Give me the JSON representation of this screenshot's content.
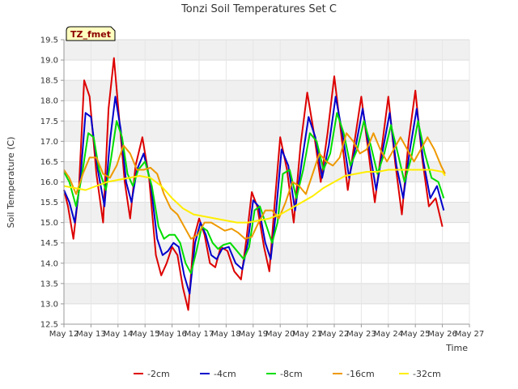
{
  "chart_data": {
    "type": "line",
    "title": "Tonzi Soil Temperatures Set C",
    "xlabel": "Time",
    "ylabel": "Soil Temperature (C)",
    "site_label": "TZ_fmet",
    "xlim": [
      12,
      27
    ],
    "ylim": [
      12.5,
      19.5
    ],
    "x_ticks": [
      12,
      13,
      14,
      15,
      16,
      17,
      18,
      19,
      20,
      21,
      22,
      23,
      24,
      25,
      26,
      27
    ],
    "x_tick_labels": [
      "May 12",
      "May 13",
      "May 14",
      "May 15",
      "May 16",
      "May 17",
      "May 18",
      "May 19",
      "May 20",
      "May 21",
      "May 22",
      "May 23",
      "May 24",
      "May 25",
      "May 26",
      "May 27"
    ],
    "y_ticks": [
      12.5,
      13.0,
      13.5,
      14.0,
      14.5,
      15.0,
      15.5,
      16.0,
      16.5,
      17.0,
      17.5,
      18.0,
      18.5,
      19.0,
      19.5
    ],
    "y_tick_labels": [
      "12.5",
      "13.0",
      "13.5",
      "14.0",
      "14.5",
      "15.0",
      "15.5",
      "16.0",
      "16.5",
      "17.0",
      "17.5",
      "18.0",
      "18.5",
      "19.0",
      "19.5"
    ],
    "grid": true,
    "legend_position": "bottom",
    "series": [
      {
        "name": "-2cm",
        "color": "#dd0000",
        "x": [
          12.0,
          12.15,
          12.35,
          12.55,
          12.75,
          12.95,
          13.2,
          13.45,
          13.65,
          13.85,
          14.05,
          14.25,
          14.45,
          14.65,
          14.9,
          15.15,
          15.4,
          15.6,
          15.8,
          16.0,
          16.2,
          16.4,
          16.6,
          16.8,
          17.0,
          17.2,
          17.4,
          17.6,
          17.8,
          18.05,
          18.3,
          18.55,
          18.75,
          18.95,
          19.15,
          19.4,
          19.6,
          19.8,
          20.0,
          20.25,
          20.5,
          20.75,
          21.0,
          21.25,
          21.5,
          21.75,
          22.0,
          22.25,
          22.5,
          22.75,
          23.0,
          23.25,
          23.5,
          23.75,
          24.0,
          24.25,
          24.5,
          24.75,
          25.0,
          25.25,
          25.5,
          25.75,
          26.0
        ],
        "y": [
          15.8,
          15.4,
          14.6,
          15.8,
          18.5,
          18.1,
          16.2,
          15.0,
          17.8,
          19.05,
          17.5,
          16.0,
          15.1,
          16.4,
          17.1,
          16.1,
          14.2,
          13.7,
          14.0,
          14.4,
          14.2,
          13.4,
          12.85,
          14.6,
          15.1,
          14.7,
          14.0,
          13.9,
          14.4,
          14.3,
          13.8,
          13.6,
          14.6,
          15.75,
          15.4,
          14.4,
          13.8,
          15.5,
          17.1,
          16.3,
          15.0,
          16.9,
          18.2,
          17.2,
          16.0,
          17.2,
          18.6,
          17.2,
          15.8,
          17.0,
          18.1,
          16.8,
          15.5,
          16.8,
          18.1,
          16.5,
          15.2,
          17.0,
          18.25,
          16.6,
          15.4,
          15.6,
          14.9
        ]
      },
      {
        "name": "-4cm",
        "color": "#0000cc",
        "x": [
          12.0,
          12.2,
          12.4,
          12.6,
          12.8,
          13.0,
          13.25,
          13.5,
          13.7,
          13.9,
          14.1,
          14.3,
          14.5,
          14.7,
          14.95,
          15.2,
          15.45,
          15.65,
          15.85,
          16.05,
          16.25,
          16.45,
          16.65,
          16.85,
          17.05,
          17.25,
          17.45,
          17.65,
          17.85,
          18.1,
          18.35,
          18.6,
          18.8,
          19.0,
          19.2,
          19.45,
          19.65,
          19.85,
          20.05,
          20.3,
          20.55,
          20.8,
          21.05,
          21.3,
          21.55,
          21.8,
          22.05,
          22.3,
          22.55,
          22.8,
          23.05,
          23.3,
          23.55,
          23.8,
          24.05,
          24.3,
          24.55,
          24.8,
          25.05,
          25.3,
          25.55,
          25.8,
          26.05
        ],
        "y": [
          15.8,
          15.5,
          15.0,
          16.0,
          17.7,
          17.6,
          16.3,
          15.4,
          17.0,
          18.1,
          17.3,
          16.0,
          15.5,
          16.3,
          16.7,
          16.0,
          14.6,
          14.2,
          14.3,
          14.5,
          14.4,
          13.7,
          13.25,
          14.5,
          15.0,
          14.7,
          14.2,
          14.1,
          14.35,
          14.4,
          14.0,
          13.85,
          14.5,
          15.55,
          15.4,
          14.5,
          14.1,
          15.3,
          16.8,
          16.4,
          15.3,
          16.5,
          17.6,
          17.1,
          16.1,
          16.9,
          18.1,
          17.2,
          16.1,
          16.9,
          17.8,
          16.8,
          15.8,
          16.8,
          17.7,
          16.4,
          15.6,
          16.8,
          17.8,
          16.5,
          15.6,
          15.9,
          15.3
        ]
      },
      {
        "name": "-8cm",
        "color": "#00dd00",
        "x": [
          12.0,
          12.2,
          12.45,
          12.65,
          12.9,
          13.1,
          13.3,
          13.55,
          13.75,
          13.95,
          14.15,
          14.35,
          14.55,
          14.75,
          15.0,
          15.25,
          15.5,
          15.7,
          15.9,
          16.1,
          16.3,
          16.5,
          16.7,
          16.9,
          17.1,
          17.3,
          17.5,
          17.7,
          17.9,
          18.15,
          18.4,
          18.65,
          18.85,
          19.05,
          19.25,
          19.5,
          19.7,
          19.9,
          20.1,
          20.35,
          20.6,
          20.85,
          21.1,
          21.35,
          21.6,
          21.85,
          22.1,
          22.35,
          22.6,
          22.85,
          23.1,
          23.35,
          23.6,
          23.85,
          24.1,
          24.35,
          24.6,
          24.85,
          25.1,
          25.35,
          25.6,
          25.85,
          26.05
        ],
        "y": [
          16.25,
          16.0,
          15.4,
          16.1,
          17.2,
          17.1,
          16.3,
          15.8,
          16.6,
          17.5,
          17.1,
          16.2,
          15.9,
          16.3,
          16.5,
          15.9,
          14.9,
          14.6,
          14.7,
          14.7,
          14.5,
          14.0,
          13.75,
          14.3,
          14.9,
          14.8,
          14.5,
          14.35,
          14.45,
          14.5,
          14.3,
          14.1,
          14.4,
          15.3,
          15.4,
          14.9,
          14.5,
          15.0,
          16.2,
          16.3,
          15.6,
          16.3,
          17.2,
          17.0,
          16.3,
          16.7,
          17.7,
          17.2,
          16.4,
          16.8,
          17.5,
          16.9,
          16.2,
          16.7,
          17.4,
          16.7,
          16.0,
          16.6,
          17.5,
          16.7,
          16.1,
          16.0,
          15.6
        ]
      },
      {
        "name": "-16cm",
        "color": "#ee9900",
        "x": [
          12.0,
          12.2,
          12.45,
          12.7,
          12.95,
          13.2,
          13.45,
          13.7,
          13.95,
          14.2,
          14.45,
          14.7,
          14.95,
          15.2,
          15.45,
          15.7,
          15.95,
          16.2,
          16.45,
          16.7,
          16.95,
          17.2,
          17.45,
          17.7,
          17.95,
          18.2,
          18.45,
          18.7,
          18.95,
          19.2,
          19.45,
          19.7,
          19.95,
          20.2,
          20.45,
          20.7,
          20.95,
          21.2,
          21.45,
          21.7,
          21.95,
          22.2,
          22.45,
          22.7,
          22.95,
          23.2,
          23.45,
          23.7,
          23.95,
          24.2,
          24.45,
          24.7,
          24.95,
          25.2,
          25.45,
          25.7,
          25.95,
          26.1
        ],
        "y": [
          16.3,
          16.1,
          15.7,
          16.2,
          16.6,
          16.6,
          16.2,
          16.1,
          16.4,
          16.9,
          16.7,
          16.3,
          16.3,
          16.35,
          16.2,
          15.7,
          15.35,
          15.2,
          14.9,
          14.6,
          14.7,
          15.0,
          15.0,
          14.9,
          14.8,
          14.85,
          14.75,
          14.6,
          14.65,
          15.0,
          15.3,
          15.3,
          15.1,
          15.5,
          16.0,
          15.9,
          15.7,
          16.2,
          16.7,
          16.5,
          16.4,
          16.6,
          17.2,
          17.0,
          16.7,
          16.8,
          17.2,
          16.8,
          16.5,
          16.8,
          17.1,
          16.8,
          16.5,
          16.8,
          17.1,
          16.8,
          16.4,
          16.2
        ]
      },
      {
        "name": "-32cm",
        "color": "#ffee00",
        "x": [
          12.0,
          12.4,
          12.8,
          13.2,
          13.6,
          14.0,
          14.4,
          14.8,
          15.2,
          15.6,
          16.0,
          16.4,
          16.8,
          17.2,
          17.6,
          18.0,
          18.4,
          18.8,
          19.2,
          19.6,
          20.0,
          20.4,
          20.8,
          21.2,
          21.6,
          22.0,
          22.4,
          22.8,
          23.2,
          23.6,
          24.0,
          24.4,
          24.8,
          25.2,
          25.6,
          26.0,
          26.1
        ],
        "y": [
          15.9,
          15.85,
          15.8,
          15.9,
          16.0,
          16.05,
          16.1,
          16.15,
          16.1,
          15.9,
          15.6,
          15.35,
          15.2,
          15.15,
          15.1,
          15.05,
          15.0,
          15.0,
          15.05,
          15.1,
          15.2,
          15.35,
          15.5,
          15.65,
          15.85,
          16.0,
          16.15,
          16.2,
          16.25,
          16.25,
          16.3,
          16.3,
          16.3,
          16.3,
          16.3,
          16.25,
          16.15
        ]
      }
    ]
  }
}
